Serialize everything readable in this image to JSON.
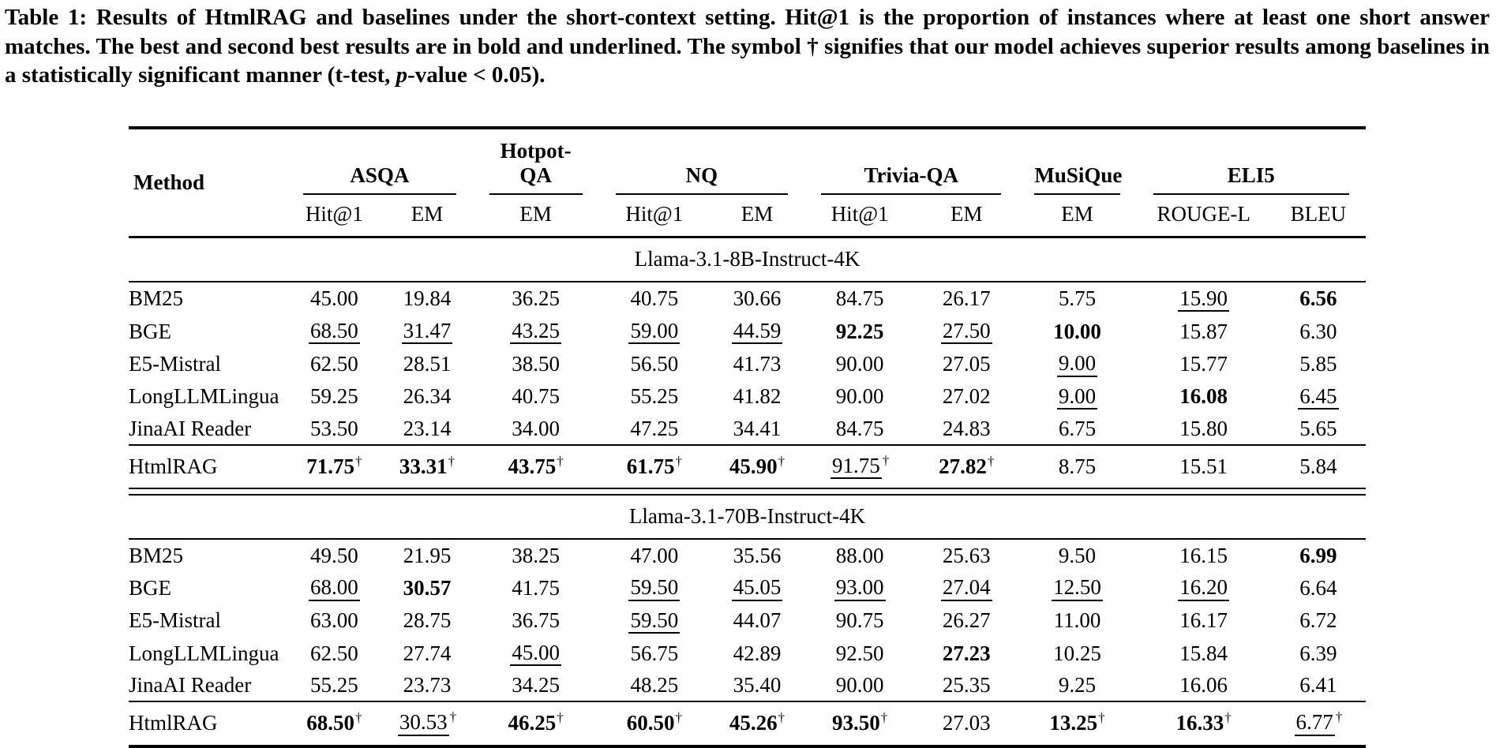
{
  "colors": {
    "text": "#000000",
    "background": "#ffffff"
  },
  "caption": {
    "text_before_italic": "Table 1: Results of HtmlRAG and baselines under the short-context setting. Hit@1 is the proportion of instances where at least one short answer matches. The best and second best results are in bold and underlined. The symbol † signifies that our model achieves superior results among baselines in a statistically significant manner (t-test, ",
    "italic": "p",
    "text_after_italic": "-value < 0.05)."
  },
  "table": {
    "method_header": "Method",
    "dagger": "†",
    "groups": [
      {
        "label": "ASQA",
        "cols": [
          "Hit@1",
          "EM"
        ]
      },
      {
        "label": "Hotpot-QA",
        "cols": [
          "EM"
        ]
      },
      {
        "label": "NQ",
        "cols": [
          "Hit@1",
          "EM"
        ]
      },
      {
        "label": "Trivia-QA",
        "cols": [
          "Hit@1",
          "EM"
        ]
      },
      {
        "label": "MuSiQue",
        "cols": [
          "EM"
        ]
      },
      {
        "label": "ELI5",
        "cols": [
          "ROUGE-L",
          "BLEU"
        ]
      }
    ],
    "sections": [
      {
        "title": "Llama-3.1-8B-Instruct-4K",
        "rows": [
          {
            "method": "BM25",
            "result": false,
            "cells": [
              [
                "45.00",
                ""
              ],
              [
                "19.84",
                ""
              ],
              [
                "36.25",
                ""
              ],
              [
                "40.75",
                ""
              ],
              [
                "30.66",
                ""
              ],
              [
                "84.75",
                ""
              ],
              [
                "26.17",
                ""
              ],
              [
                "5.75",
                ""
              ],
              [
                "15.90",
                "u"
              ],
              [
                "6.56",
                "b"
              ]
            ]
          },
          {
            "method": "BGE",
            "result": false,
            "cells": [
              [
                "68.50",
                "u"
              ],
              [
                "31.47",
                "u"
              ],
              [
                "43.25",
                "u"
              ],
              [
                "59.00",
                "u"
              ],
              [
                "44.59",
                "u"
              ],
              [
                "92.25",
                "b"
              ],
              [
                "27.50",
                "u"
              ],
              [
                "10.00",
                "b"
              ],
              [
                "15.87",
                ""
              ],
              [
                "6.30",
                ""
              ]
            ]
          },
          {
            "method": "E5-Mistral",
            "result": false,
            "cells": [
              [
                "62.50",
                ""
              ],
              [
                "28.51",
                ""
              ],
              [
                "38.50",
                ""
              ],
              [
                "56.50",
                ""
              ],
              [
                "41.73",
                ""
              ],
              [
                "90.00",
                ""
              ],
              [
                "27.05",
                ""
              ],
              [
                "9.00",
                "u"
              ],
              [
                "15.77",
                ""
              ],
              [
                "5.85",
                ""
              ]
            ]
          },
          {
            "method": "LongLLMLingua",
            "result": false,
            "cells": [
              [
                "59.25",
                ""
              ],
              [
                "26.34",
                ""
              ],
              [
                "40.75",
                ""
              ],
              [
                "55.25",
                ""
              ],
              [
                "41.82",
                ""
              ],
              [
                "90.00",
                ""
              ],
              [
                "27.02",
                ""
              ],
              [
                "9.00",
                "u"
              ],
              [
                "16.08",
                "b"
              ],
              [
                "6.45",
                "u"
              ]
            ]
          },
          {
            "method": "JinaAI Reader",
            "result": false,
            "cells": [
              [
                "53.50",
                ""
              ],
              [
                "23.14",
                ""
              ],
              [
                "34.00",
                ""
              ],
              [
                "47.25",
                ""
              ],
              [
                "34.41",
                ""
              ],
              [
                "84.75",
                ""
              ],
              [
                "24.83",
                ""
              ],
              [
                "6.75",
                ""
              ],
              [
                "15.80",
                ""
              ],
              [
                "5.65",
                ""
              ]
            ]
          },
          {
            "method": "HtmlRAG",
            "result": true,
            "cells": [
              [
                "71.75",
                "bd"
              ],
              [
                "33.31",
                "bd"
              ],
              [
                "43.75",
                "bd"
              ],
              [
                "61.75",
                "bd"
              ],
              [
                "45.90",
                "bd"
              ],
              [
                "91.75",
                "ud"
              ],
              [
                "27.82",
                "bd"
              ],
              [
                "8.75",
                ""
              ],
              [
                "15.51",
                ""
              ],
              [
                "5.84",
                ""
              ]
            ]
          }
        ]
      },
      {
        "title": "Llama-3.1-70B-Instruct-4K",
        "rows": [
          {
            "method": "BM25",
            "result": false,
            "cells": [
              [
                "49.50",
                ""
              ],
              [
                "21.95",
                ""
              ],
              [
                "38.25",
                ""
              ],
              [
                "47.00",
                ""
              ],
              [
                "35.56",
                ""
              ],
              [
                "88.00",
                ""
              ],
              [
                "25.63",
                ""
              ],
              [
                "9.50",
                ""
              ],
              [
                "16.15",
                ""
              ],
              [
                "6.99",
                "b"
              ]
            ]
          },
          {
            "method": "BGE",
            "result": false,
            "cells": [
              [
                "68.00",
                "u"
              ],
              [
                "30.57",
                "b"
              ],
              [
                "41.75",
                ""
              ],
              [
                "59.50",
                "u"
              ],
              [
                "45.05",
                "u"
              ],
              [
                "93.00",
                "u"
              ],
              [
                "27.04",
                "u"
              ],
              [
                "12.50",
                "u"
              ],
              [
                "16.20",
                "u"
              ],
              [
                "6.64",
                ""
              ]
            ]
          },
          {
            "method": "E5-Mistral",
            "result": false,
            "cells": [
              [
                "63.00",
                ""
              ],
              [
                "28.75",
                ""
              ],
              [
                "36.75",
                ""
              ],
              [
                "59.50",
                "u"
              ],
              [
                "44.07",
                ""
              ],
              [
                "90.75",
                ""
              ],
              [
                "26.27",
                ""
              ],
              [
                "11.00",
                ""
              ],
              [
                "16.17",
                ""
              ],
              [
                "6.72",
                ""
              ]
            ]
          },
          {
            "method": "LongLLMLingua",
            "result": false,
            "cells": [
              [
                "62.50",
                ""
              ],
              [
                "27.74",
                ""
              ],
              [
                "45.00",
                "u"
              ],
              [
                "56.75",
                ""
              ],
              [
                "42.89",
                ""
              ],
              [
                "92.50",
                ""
              ],
              [
                "27.23",
                "b"
              ],
              [
                "10.25",
                ""
              ],
              [
                "15.84",
                ""
              ],
              [
                "6.39",
                ""
              ]
            ]
          },
          {
            "method": "JinaAI Reader",
            "result": false,
            "cells": [
              [
                "55.25",
                ""
              ],
              [
                "23.73",
                ""
              ],
              [
                "34.25",
                ""
              ],
              [
                "48.25",
                ""
              ],
              [
                "35.40",
                ""
              ],
              [
                "90.00",
                ""
              ],
              [
                "25.35",
                ""
              ],
              [
                "9.25",
                ""
              ],
              [
                "16.06",
                ""
              ],
              [
                "6.41",
                ""
              ]
            ]
          },
          {
            "method": "HtmlRAG",
            "result": true,
            "cells": [
              [
                "68.50",
                "bd"
              ],
              [
                "30.53",
                "ud"
              ],
              [
                "46.25",
                "bd"
              ],
              [
                "60.50",
                "bd"
              ],
              [
                "45.26",
                "bd"
              ],
              [
                "93.50",
                "bd"
              ],
              [
                "27.03",
                ""
              ],
              [
                "13.25",
                "bd"
              ],
              [
                "16.33",
                "bd"
              ],
              [
                "6.77",
                "ud"
              ]
            ]
          }
        ]
      }
    ]
  }
}
